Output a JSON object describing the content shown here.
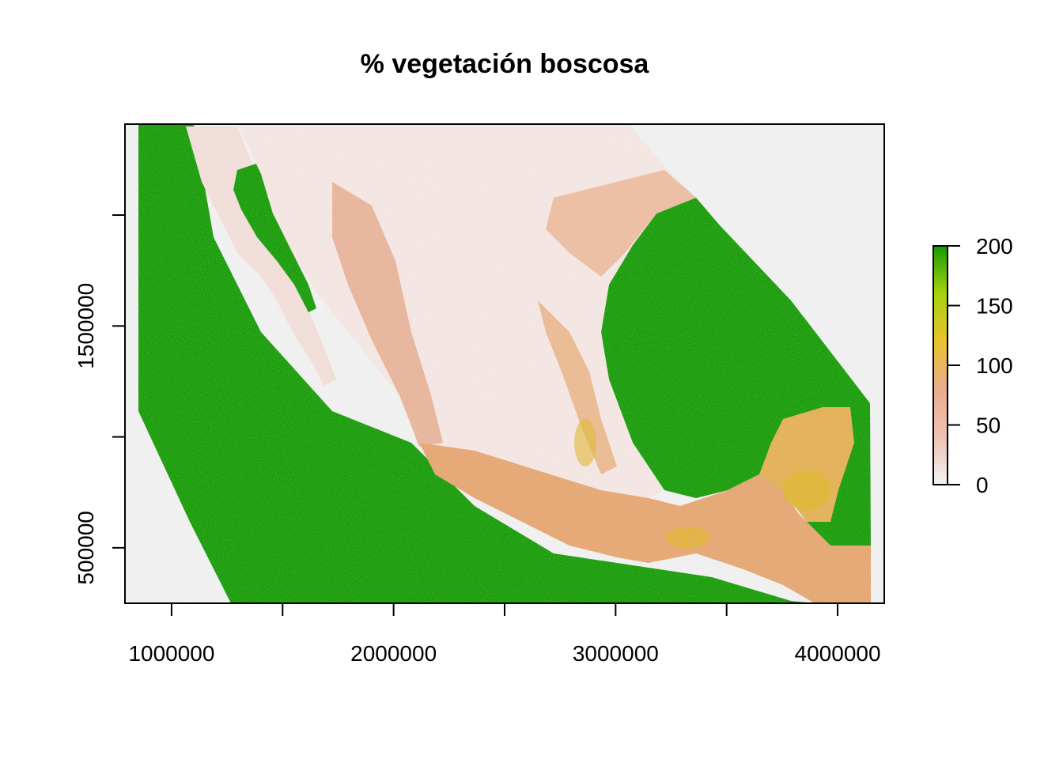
{
  "chart_data": {
    "type": "heatmap",
    "title": "% vegetación boscosa",
    "xlabel": "",
    "ylabel": "",
    "x_ticks": [
      {
        "value": 1000000,
        "label": "1000000"
      },
      {
        "value": 1500000,
        "label": ""
      },
      {
        "value": 2000000,
        "label": "2000000"
      },
      {
        "value": 2500000,
        "label": ""
      },
      {
        "value": 3000000,
        "label": "3000000"
      },
      {
        "value": 3500000,
        "label": ""
      },
      {
        "value": 4000000,
        "label": "4000000"
      }
    ],
    "y_ticks": [
      {
        "value": 500000,
        "label": "500000"
      },
      {
        "value": 1000000,
        "label": ""
      },
      {
        "value": 1500000,
        "label": "1500000"
      },
      {
        "value": 2000000,
        "label": ""
      }
    ],
    "xlim": [
      790000,
      4210000
    ],
    "ylim": [
      250000,
      2410000
    ],
    "legend": {
      "position": "right",
      "range": [
        0,
        200
      ],
      "ticks": [
        {
          "value": 0,
          "label": "0"
        },
        {
          "value": 50,
          "label": "50"
        },
        {
          "value": 100,
          "label": "100"
        },
        {
          "value": 150,
          "label": "150"
        },
        {
          "value": 200,
          "label": "200"
        }
      ],
      "colors": [
        "#f2f2f2",
        "#efc2b3",
        "#eaac8b",
        "#e8c32e",
        "#a7d30f",
        "#159a05"
      ]
    },
    "colors": {
      "water": "#159a05",
      "nodata": "#efefef",
      "land_low": "#f3e8e6",
      "land_mid": "#e8a97e",
      "land_high": "#dcb02a"
    },
    "grid": false
  }
}
